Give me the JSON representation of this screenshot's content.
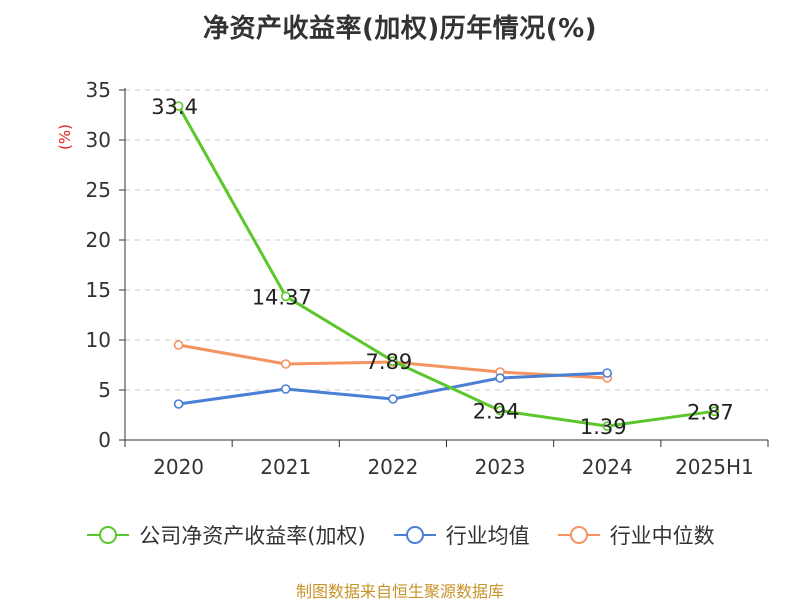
{
  "chart_data": {
    "type": "line",
    "title": "净资产收益率(加权)历年情况(%)",
    "ylabel": "(%)",
    "categories": [
      "2020",
      "2021",
      "2022",
      "2023",
      "2024",
      "2025H1"
    ],
    "ylim": [
      0,
      35
    ],
    "yticks": [
      0,
      5,
      10,
      15,
      20,
      25,
      30,
      35
    ],
    "grid": true,
    "legend_position": "bottom",
    "series": [
      {
        "name": "公司净资产收益率(加权)",
        "color": "#5cc72c",
        "values": [
          33.4,
          14.37,
          7.89,
          2.94,
          1.39,
          2.87
        ],
        "labels": [
          "33.4",
          "14.37",
          "7.89",
          "2.94",
          "1.39",
          "2.87"
        ]
      },
      {
        "name": "行业均值",
        "color": "#4a7fd6",
        "values": [
          3.6,
          5.1,
          4.1,
          6.2,
          6.7,
          null
        ]
      },
      {
        "name": "行业中位数",
        "color": "#f4935f",
        "values": [
          9.5,
          7.6,
          7.8,
          6.8,
          6.2,
          null
        ]
      }
    ]
  },
  "source": "制图数据来自恒生聚源数据库"
}
